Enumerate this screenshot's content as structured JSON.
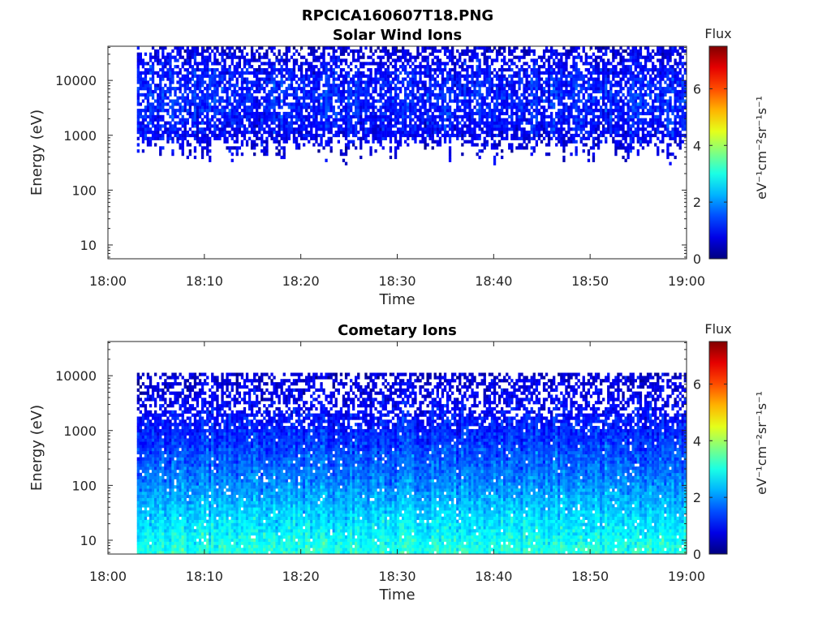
{
  "figure": {
    "title": "RPCICA160607T18.PNG"
  },
  "chart_data": [
    {
      "type": "heatmap",
      "title": "Solar Wind Ions",
      "xlabel": "Time",
      "ylabel": "Energy (eV)",
      "x_range": [
        "18:00",
        "19:00"
      ],
      "y_range_ev": [
        5.6,
        42000
      ],
      "y_scale": "log",
      "x_ticks": [
        "18:00",
        "18:10",
        "18:20",
        "18:30",
        "18:40",
        "18:50",
        "19:00"
      ],
      "y_ticks": [
        "10",
        "100",
        "1000",
        "10000"
      ],
      "data_start": "18:03",
      "data_end": "19:00",
      "populated_energy_ev": [
        300,
        42000
      ],
      "flux_profile": [
        {
          "energy": 40000,
          "flux": 0.6
        },
        {
          "energy": 20000,
          "flux": 0.9
        },
        {
          "energy": 10000,
          "flux": 1.1
        },
        {
          "energy": 5000,
          "flux": 1.2
        },
        {
          "energy": 2000,
          "flux": 1.1
        },
        {
          "energy": 1000,
          "flux": 0.9
        },
        {
          "energy": 600,
          "flux": 0.7
        }
      ],
      "colorbar": {
        "label": "Flux",
        "unit": "eV⁻¹cm⁻²sr⁻¹s⁻¹",
        "ticks": [
          "0",
          "2",
          "4",
          "6"
        ],
        "range": [
          0,
          7.5
        ],
        "colormap": "jet"
      }
    },
    {
      "type": "heatmap",
      "title": "Cometary Ions",
      "xlabel": "Time",
      "ylabel": "Energy (eV)",
      "x_range": [
        "18:00",
        "19:00"
      ],
      "y_range_ev": [
        5.6,
        42000
      ],
      "y_scale": "log",
      "x_ticks": [
        "18:00",
        "18:10",
        "18:20",
        "18:30",
        "18:40",
        "18:50",
        "19:00"
      ],
      "y_ticks": [
        "10",
        "100",
        "1000",
        "10000"
      ],
      "data_start": "18:03",
      "data_end": "19:00",
      "populated_energy_ev": [
        5.6,
        12000
      ],
      "flux_profile": [
        {
          "energy": 10000,
          "flux": 0.6
        },
        {
          "energy": 3000,
          "flux": 0.9
        },
        {
          "energy": 1000,
          "flux": 1.2
        },
        {
          "energy": 300,
          "flux": 1.6
        },
        {
          "energy": 100,
          "flux": 2.0
        },
        {
          "energy": 30,
          "flux": 2.5
        },
        {
          "energy": 10,
          "flux": 2.9
        },
        {
          "energy": 6,
          "flux": 3.1
        }
      ],
      "colorbar": {
        "label": "Flux",
        "unit": "eV⁻¹cm⁻²sr⁻¹s⁻¹",
        "ticks": [
          "0",
          "2",
          "4",
          "6"
        ],
        "range": [
          0,
          7.5
        ],
        "colormap": "jet"
      }
    }
  ]
}
